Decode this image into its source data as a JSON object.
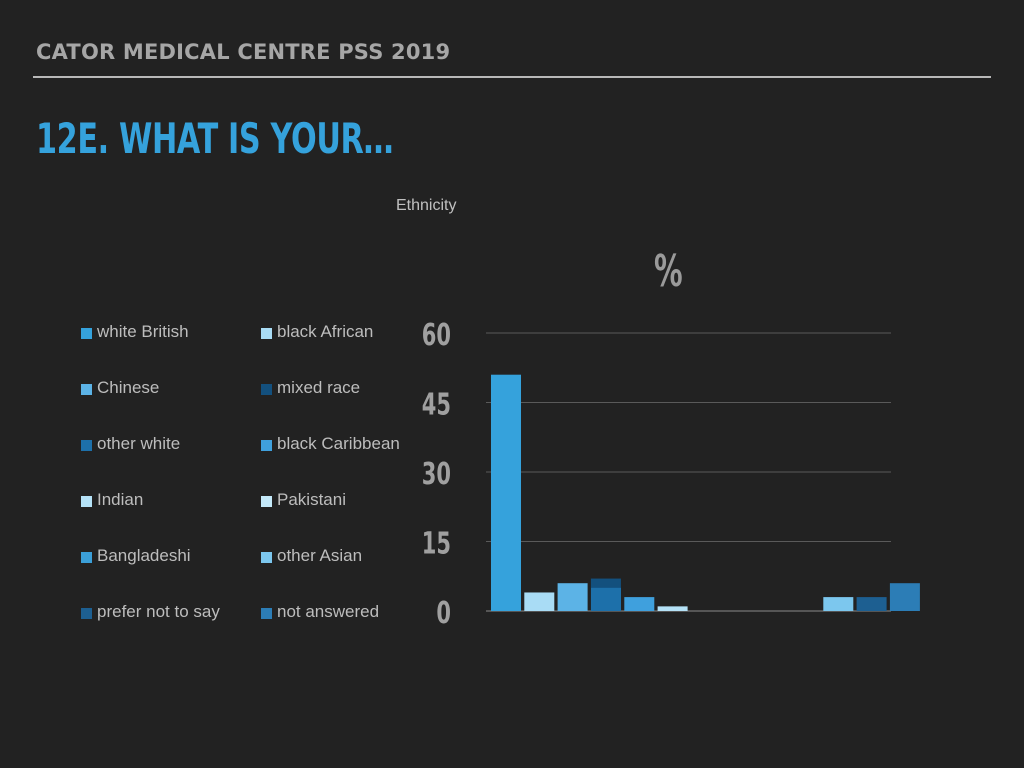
{
  "header": {
    "title": "CATOR MEDICAL CENTRE PSS 2019"
  },
  "slide": {
    "title": "12E. WHAT IS YOUR…"
  },
  "chart_data": {
    "type": "bar",
    "title": "Ethnicity",
    "ylabel": "%",
    "ylim": [
      0,
      60
    ],
    "yticks": [
      0,
      15,
      30,
      45,
      60
    ],
    "grid": true,
    "legend_position": "left",
    "series": [
      {
        "name": "white British",
        "value": 51,
        "color": "#35a2dc"
      },
      {
        "name": "black African",
        "value": 4,
        "color": "#a9dcf5"
      },
      {
        "name": "Chinese",
        "value": 6,
        "color": "#5cb3e6"
      },
      {
        "name": "mixed race",
        "value": 7,
        "color": "#13507e"
      },
      {
        "name": "other white",
        "value": 5,
        "color": "#1d70aa"
      },
      {
        "name": "black Caribbean",
        "value": 3,
        "color": "#3fa0dd"
      },
      {
        "name": "Indian",
        "value": 1,
        "color": "#b5e2f7"
      },
      {
        "name": "Pakistani",
        "value": 0,
        "color": "#c4e9f9"
      },
      {
        "name": "Bangladeshi",
        "value": 0,
        "color": "#3b9fd8"
      },
      {
        "name": "other Asian",
        "value": 3,
        "color": "#7cc7ee"
      },
      {
        "name": "prefer not to say",
        "value": 3,
        "color": "#1d5f91"
      },
      {
        "name": "not answered",
        "value": 6,
        "color": "#2c7db6"
      }
    ]
  }
}
